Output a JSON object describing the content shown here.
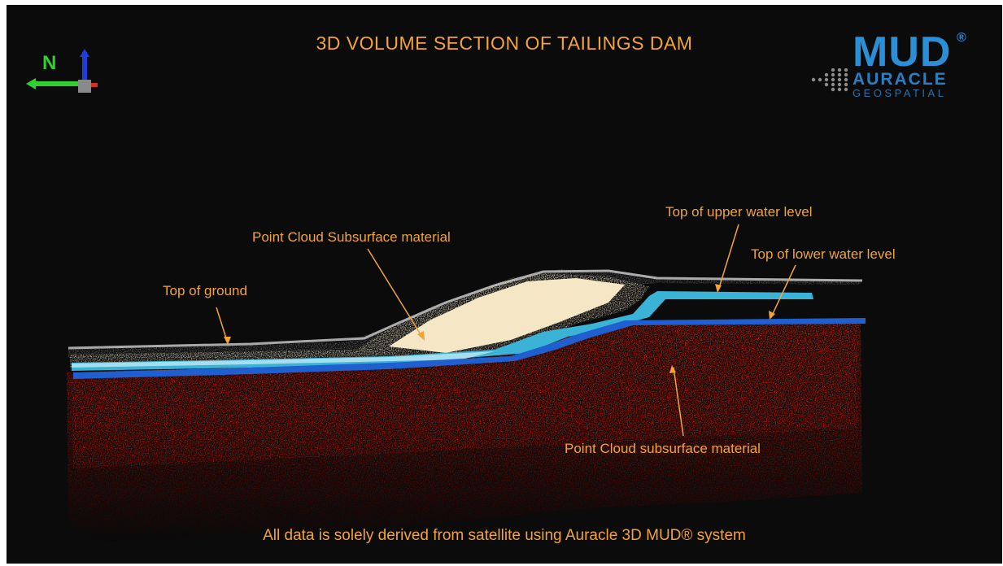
{
  "title": "3D VOLUME SECTION OF TAILINGS DAM",
  "footer": "All data is solely derived from satellite using Auracle 3D MUD® system",
  "compass": {
    "north_label": "N"
  },
  "logo": {
    "brand": "MUD",
    "registered": "®",
    "line1": "AURACLE",
    "line2": "GEOSPATIAL"
  },
  "labels": {
    "top_of_ground": "Top of ground",
    "point_cloud_upper": "Point Cloud Subsurface material",
    "upper_water": "Top of upper water level",
    "lower_water": "Top of lower water level",
    "point_cloud_lower": "Point Cloud subsurface material"
  },
  "colors": {
    "accent_text": "#f2a33a",
    "background": "#0b0b0b",
    "subsurface_red": "#e0190f",
    "tailings_cream": "#f3e4c0",
    "upper_water": "#3bb3d6",
    "lower_water": "#1f5fd0",
    "ground_gray": "#b9b9b9",
    "logo_blue": "#2a8fd6"
  }
}
